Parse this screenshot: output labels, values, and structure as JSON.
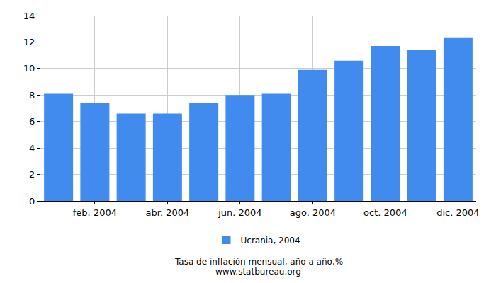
{
  "chart_data": {
    "type": "bar",
    "title": "Tasa de inflación mensual, año a año,%",
    "subtitle": "www.statbureau.org",
    "categories": [
      null,
      "feb. 2004",
      null,
      "abr. 2004",
      null,
      "jun. 2004",
      null,
      "ago. 2004",
      null,
      "oct. 2004",
      null,
      "dic. 2004"
    ],
    "series": [
      {
        "name": "Ucrania, 2004",
        "color": "#418bef",
        "values": [
          8.1,
          7.4,
          6.6,
          6.6,
          7.4,
          8.0,
          8.1,
          9.9,
          10.6,
          11.7,
          11.4,
          12.3
        ]
      }
    ],
    "ylim": [
      0,
      14
    ],
    "yticks": [
      0,
      2,
      4,
      6,
      8,
      10,
      12,
      14
    ],
    "grid": true,
    "legend": "bottom"
  }
}
